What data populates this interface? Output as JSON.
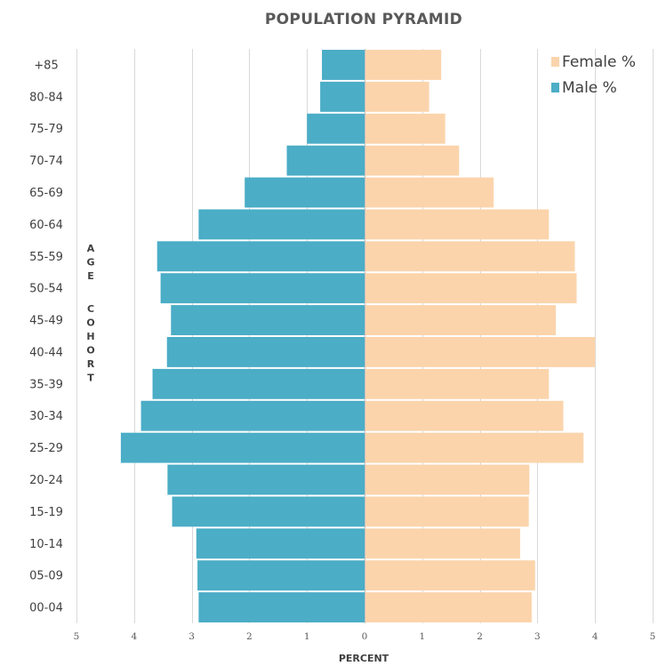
{
  "chart_data": {
    "type": "bar",
    "orientation": "horizontal",
    "title": "POPULATION PYRAMID",
    "xlabel": "PERCENT",
    "ylabel": "AGE COHORT",
    "categories": [
      "+85",
      "80-84",
      "75-79",
      "70-74",
      "65-69",
      "60-64",
      "55-59",
      "50-54",
      "45-49",
      "40-44",
      "35-39",
      "30-34",
      "25-29",
      "20-24",
      "15-19",
      "10-14",
      "05-09",
      "00-04"
    ],
    "xlim": [
      -5,
      5
    ],
    "x_ticks": [
      -5,
      -4,
      -3,
      -2,
      -1,
      0,
      1,
      2,
      3,
      4,
      5
    ],
    "x_tick_labels": [
      "5",
      "4",
      "3",
      "2",
      "1",
      "0",
      "1",
      "2",
      "3",
      "4",
      "5"
    ],
    "grid": true,
    "legend_position": "top-right",
    "series": [
      {
        "name": "Female %",
        "color": "#fbd4ac",
        "values": [
          1.33,
          1.12,
          1.4,
          1.64,
          2.24,
          3.2,
          3.65,
          3.68,
          3.32,
          4.0,
          3.2,
          3.45,
          3.8,
          2.86,
          2.85,
          2.7,
          2.96,
          2.9
        ]
      },
      {
        "name": "Male %",
        "color": "#4badc6",
        "values": [
          0.74,
          0.77,
          1.0,
          1.35,
          2.08,
          2.88,
          3.6,
          3.54,
          3.36,
          3.43,
          3.68,
          3.88,
          4.23,
          3.42,
          3.34,
          2.92,
          2.9,
          2.88
        ]
      }
    ]
  }
}
